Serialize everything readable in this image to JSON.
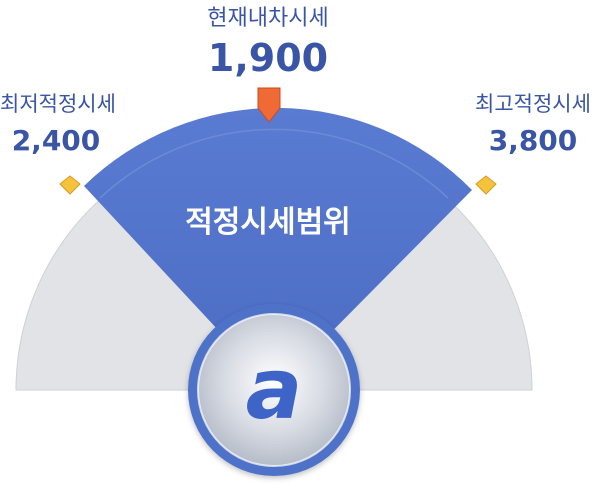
{
  "current": {
    "title": "현재내차시세",
    "value": "1,900"
  },
  "low": {
    "title": "최저적정시세",
    "value": "2,400"
  },
  "high": {
    "title": "최고적정시세",
    "value": "3,800"
  },
  "range_label": "적정시세범위",
  "logo_letter": "a",
  "colors": {
    "accent": "#4f72c9",
    "gauge_gray": "#e2e3e7",
    "text": "#3a55a6",
    "marker_orange": "#f06a35",
    "marker_yellow": "#f5c33b"
  },
  "icons": {
    "current_marker": "pointer-down-icon",
    "range_markers": "diamond-icon",
    "logo": "brand-logo"
  }
}
